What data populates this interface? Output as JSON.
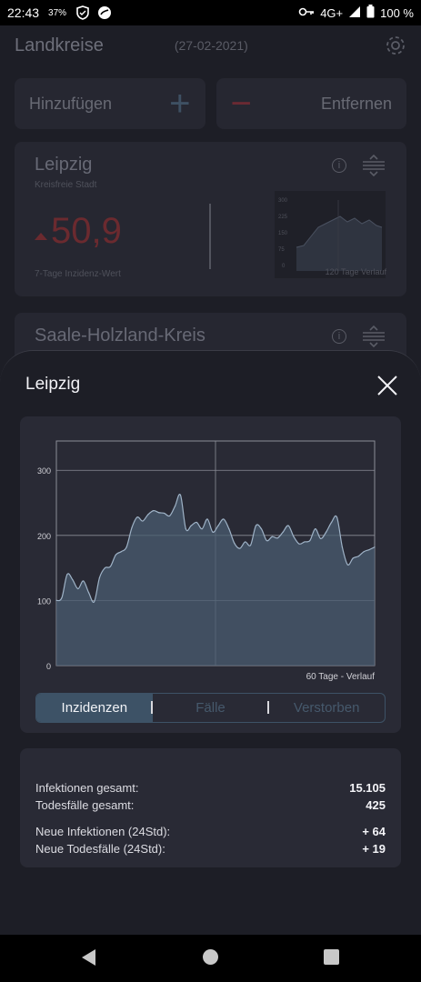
{
  "status_bar": {
    "time": "22:43",
    "battery_small": "37%",
    "network": "4G+",
    "battery": "100 %"
  },
  "app": {
    "title": "Landkreise",
    "date": "(27-02-2021)",
    "add_label": "Hinzufügen",
    "remove_label": "Entfernen",
    "cards": [
      {
        "name": "Leipzig",
        "type": "Kreisfreie Stadt",
        "value": "50,9",
        "value_label": "7-Tage Inzidenz-Wert",
        "mini_chart_label": "120 Tage Verlauf",
        "mini_ticks": [
          "300",
          "225",
          "150",
          "75",
          "0"
        ]
      },
      {
        "name": "Saale-Holzland-Kreis"
      }
    ]
  },
  "sheet": {
    "title": "Leipzig",
    "chart_caption": "60 Tage - Verlauf",
    "tabs": [
      "Inzidenzen",
      "Fälle",
      "Verstorben"
    ],
    "active_tab": 0,
    "stats": [
      {
        "label": "Infektionen gesamt:",
        "value": "15.105"
      },
      {
        "label": "Todesfälle gesamt:",
        "value": "425"
      },
      {
        "label": "Neue Infektionen (24Std):",
        "value": "+ 64"
      },
      {
        "label": "Neue Todesfälle (24Std):",
        "value": "+ 19"
      }
    ]
  },
  "colors": {
    "accent": "#3d5266",
    "area_fill": "#4a5c70",
    "area_line": "#9fb3c7",
    "negative": "#6b2a2f"
  },
  "chart_data": {
    "type": "area",
    "title": "",
    "xlabel": "60 Tage - Verlauf",
    "ylabel": "",
    "ylim": [
      0,
      345
    ],
    "yticks": [
      0,
      100,
      200,
      300
    ],
    "grid": true,
    "x": [
      1,
      2,
      3,
      4,
      5,
      6,
      7,
      8,
      9,
      10,
      11,
      12,
      13,
      14,
      15,
      16,
      17,
      18,
      19,
      20,
      21,
      22,
      23,
      24,
      25,
      26,
      27,
      28,
      29,
      30,
      31,
      32,
      33,
      34,
      35,
      36,
      37,
      38,
      39,
      40,
      41,
      42,
      43,
      44,
      45,
      46,
      47,
      48,
      49,
      50,
      51,
      52,
      53,
      54,
      55,
      56,
      57,
      58,
      59,
      60
    ],
    "values": [
      100,
      104,
      140,
      132,
      118,
      130,
      112,
      98,
      135,
      150,
      152,
      170,
      175,
      182,
      212,
      228,
      222,
      232,
      238,
      235,
      234,
      230,
      245,
      262,
      210,
      215,
      220,
      210,
      225,
      205,
      215,
      225,
      210,
      188,
      180,
      190,
      185,
      215,
      210,
      192,
      198,
      196,
      205,
      215,
      198,
      187,
      190,
      192,
      210,
      195,
      205,
      220,
      228,
      182,
      155,
      165,
      168,
      175,
      178,
      182
    ]
  }
}
